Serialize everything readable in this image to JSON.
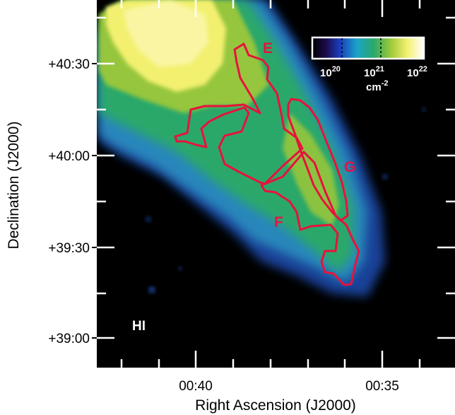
{
  "figure": {
    "x_axis_label": "Right Ascension (J2000)",
    "y_axis_label": "Declination (J2000)",
    "x_tick_labels": [
      "00:40",
      "00:35"
    ],
    "y_tick_labels": [
      "+40:30",
      "+40:00",
      "+39:30",
      "+39:00"
    ],
    "tracer_label": "HI",
    "region_labels": [
      "E",
      "G",
      "F"
    ],
    "colorbar": {
      "ticks": [
        "10",
        "10",
        "10"
      ],
      "tick_exponents": [
        "20",
        "21",
        "22"
      ],
      "unit": "cm",
      "unit_exponent": "-2"
    },
    "colors": {
      "background": "#000000",
      "contour": "#e8123c",
      "frame": "#ffffff"
    }
  }
}
